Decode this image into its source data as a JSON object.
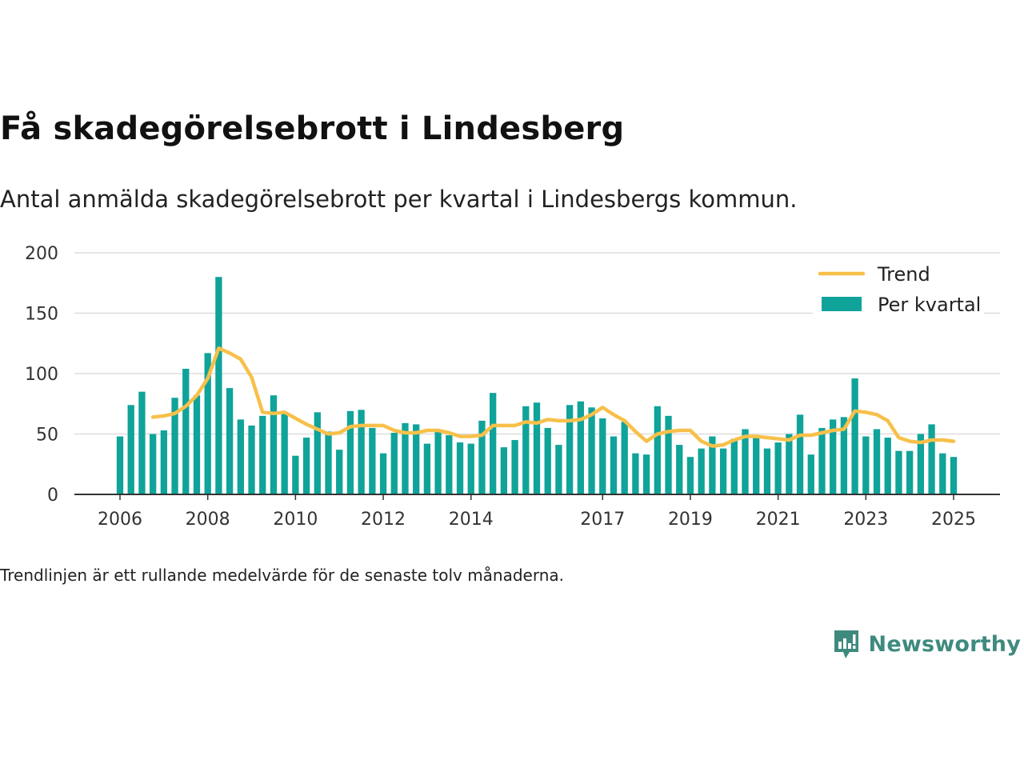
{
  "title": "Få skadegörelsebrott i Lindesberg",
  "subtitle": "Antal anmälda skadegörelsebrott per kvartal i Lindesbergs kommun.",
  "footnote": "Trendlinjen är ett rullande medelvärde för de senaste tolv månaderna.",
  "brand": "Newsworthy",
  "colors": {
    "bar": "#0fa39a",
    "trend": "#f7c04a",
    "grid": "#dddddd",
    "axis": "#333333",
    "brand": "#3f8a7f"
  },
  "chart_data": {
    "type": "bar",
    "grid": true,
    "legend_position": "top-right",
    "legend": [
      {
        "key": "trend",
        "label": "Trend"
      },
      {
        "key": "bars",
        "label": "Per kvartal"
      }
    ],
    "ylim": [
      0,
      200
    ],
    "yticks": [
      0,
      50,
      100,
      150,
      200
    ],
    "xticks": [
      {
        "label": "2006",
        "x": 2006.0
      },
      {
        "label": "2008",
        "x": 2008.0
      },
      {
        "label": "2010",
        "x": 2010.0
      },
      {
        "label": "2012",
        "x": 2012.0
      },
      {
        "label": "2014",
        "x": 2014.0
      },
      {
        "label": "2017",
        "x": 2017.0
      },
      {
        "label": "2019",
        "x": 2019.0
      },
      {
        "label": "2021",
        "x": 2021.0
      },
      {
        "label": "2023",
        "x": 2023.0
      },
      {
        "label": "2025",
        "x": 2025.0
      }
    ],
    "x_start": 2006.0,
    "x_step": 0.25,
    "series": [
      {
        "name": "Per kvartal",
        "values": [
          48,
          74,
          85,
          50,
          53,
          80,
          104,
          82,
          117,
          180,
          88,
          62,
          57,
          65,
          82,
          68,
          32,
          47,
          68,
          52,
          37,
          69,
          70,
          55,
          34,
          51,
          59,
          58,
          42,
          52,
          49,
          43,
          42,
          61,
          84,
          39,
          45,
          73,
          76,
          55,
          41,
          74,
          77,
          72,
          63,
          48,
          60,
          34,
          33,
          73,
          65,
          41,
          31,
          38,
          48,
          38,
          46,
          54,
          47,
          38,
          43,
          50,
          66,
          33,
          55,
          62,
          64,
          96,
          48,
          54,
          47,
          36,
          36,
          50,
          58,
          34,
          31
        ]
      },
      {
        "name": "Trend",
        "values": [
          null,
          null,
          null,
          64,
          65,
          67,
          73,
          82,
          96,
          121,
          117,
          112,
          97,
          68,
          67,
          68,
          63,
          58,
          54,
          50,
          51,
          56,
          57,
          57,
          57,
          53,
          51,
          51,
          53,
          53,
          51,
          48,
          48,
          49,
          57,
          57,
          57,
          60,
          59,
          62,
          61,
          61,
          62,
          66,
          72,
          66,
          61,
          52,
          44,
          50,
          52,
          53,
          53,
          44,
          40,
          41,
          45,
          48,
          48,
          47,
          46,
          45,
          49,
          49,
          51,
          53,
          54,
          69,
          68,
          66,
          61,
          47,
          44,
          43,
          45,
          45,
          44
        ]
      }
    ]
  }
}
